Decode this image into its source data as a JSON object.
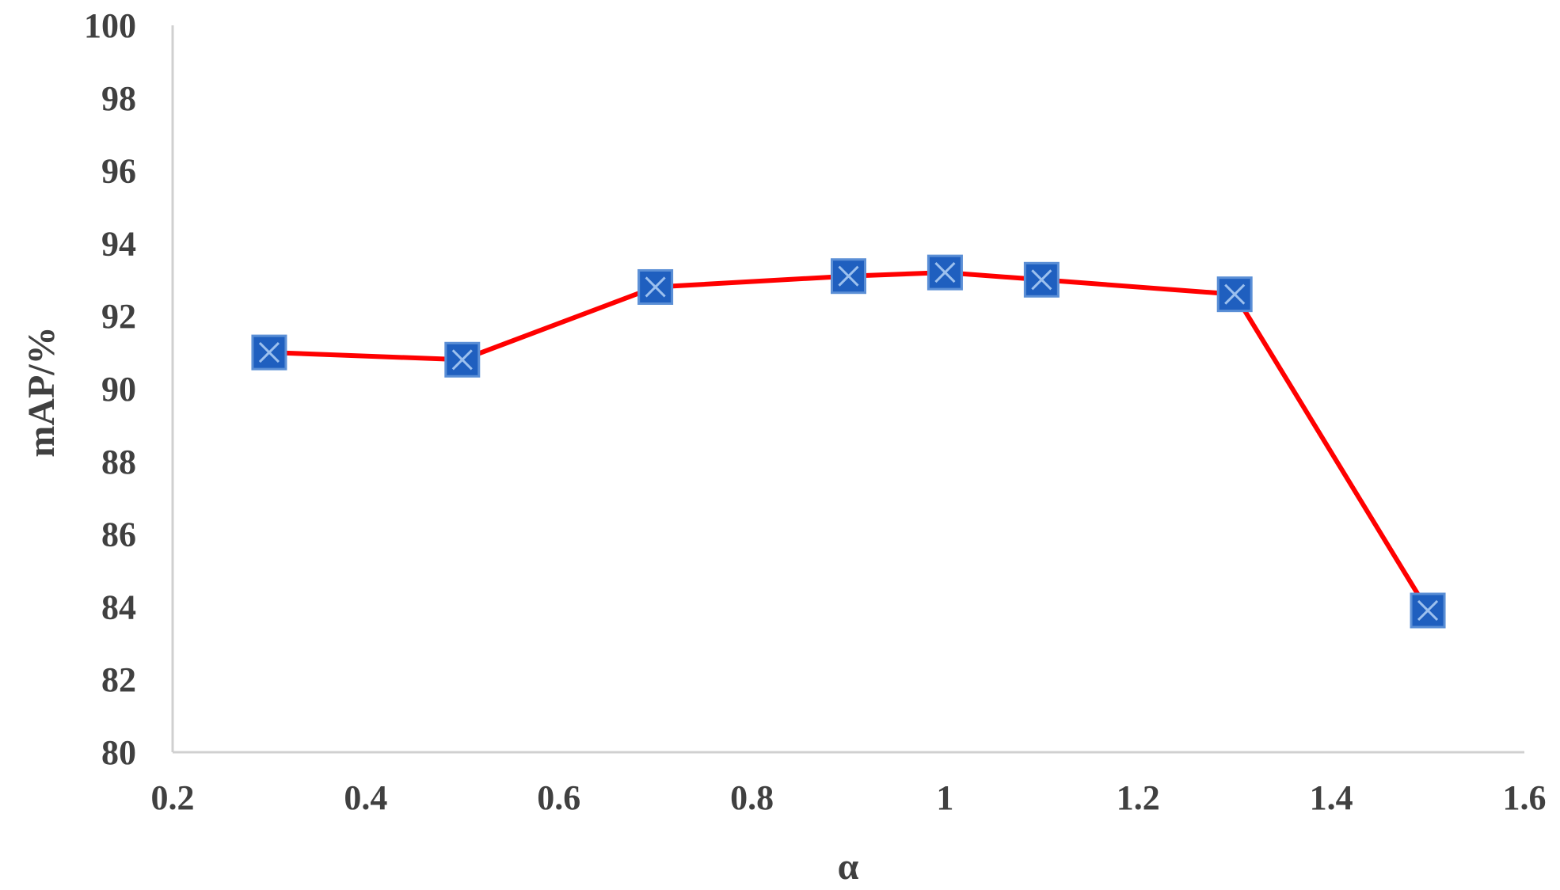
{
  "chart_data": {
    "type": "line",
    "title": "",
    "xlabel": "α",
    "ylabel": "mAP/%",
    "xlim": [
      0.2,
      1.6
    ],
    "ylim": [
      80,
      100
    ],
    "xticks": [
      "0.2",
      "0.4",
      "0.6",
      "0.8",
      "1",
      "1.2",
      "1.4",
      "1.6"
    ],
    "yticks": [
      "80",
      "82",
      "84",
      "86",
      "88",
      "90",
      "92",
      "94",
      "96",
      "98",
      "100"
    ],
    "grid": false,
    "legend": "none",
    "series": [
      {
        "x": [
          0.3,
          0.5,
          0.7,
          0.9,
          1.0,
          1.1,
          1.3,
          1.5
        ],
        "y": [
          91.0,
          90.8,
          92.8,
          93.1,
          93.2,
          93.0,
          92.6,
          83.9
        ],
        "line_color": "#ff0000",
        "marker": "square-x",
        "marker_color": "#1f5fbf"
      }
    ]
  }
}
